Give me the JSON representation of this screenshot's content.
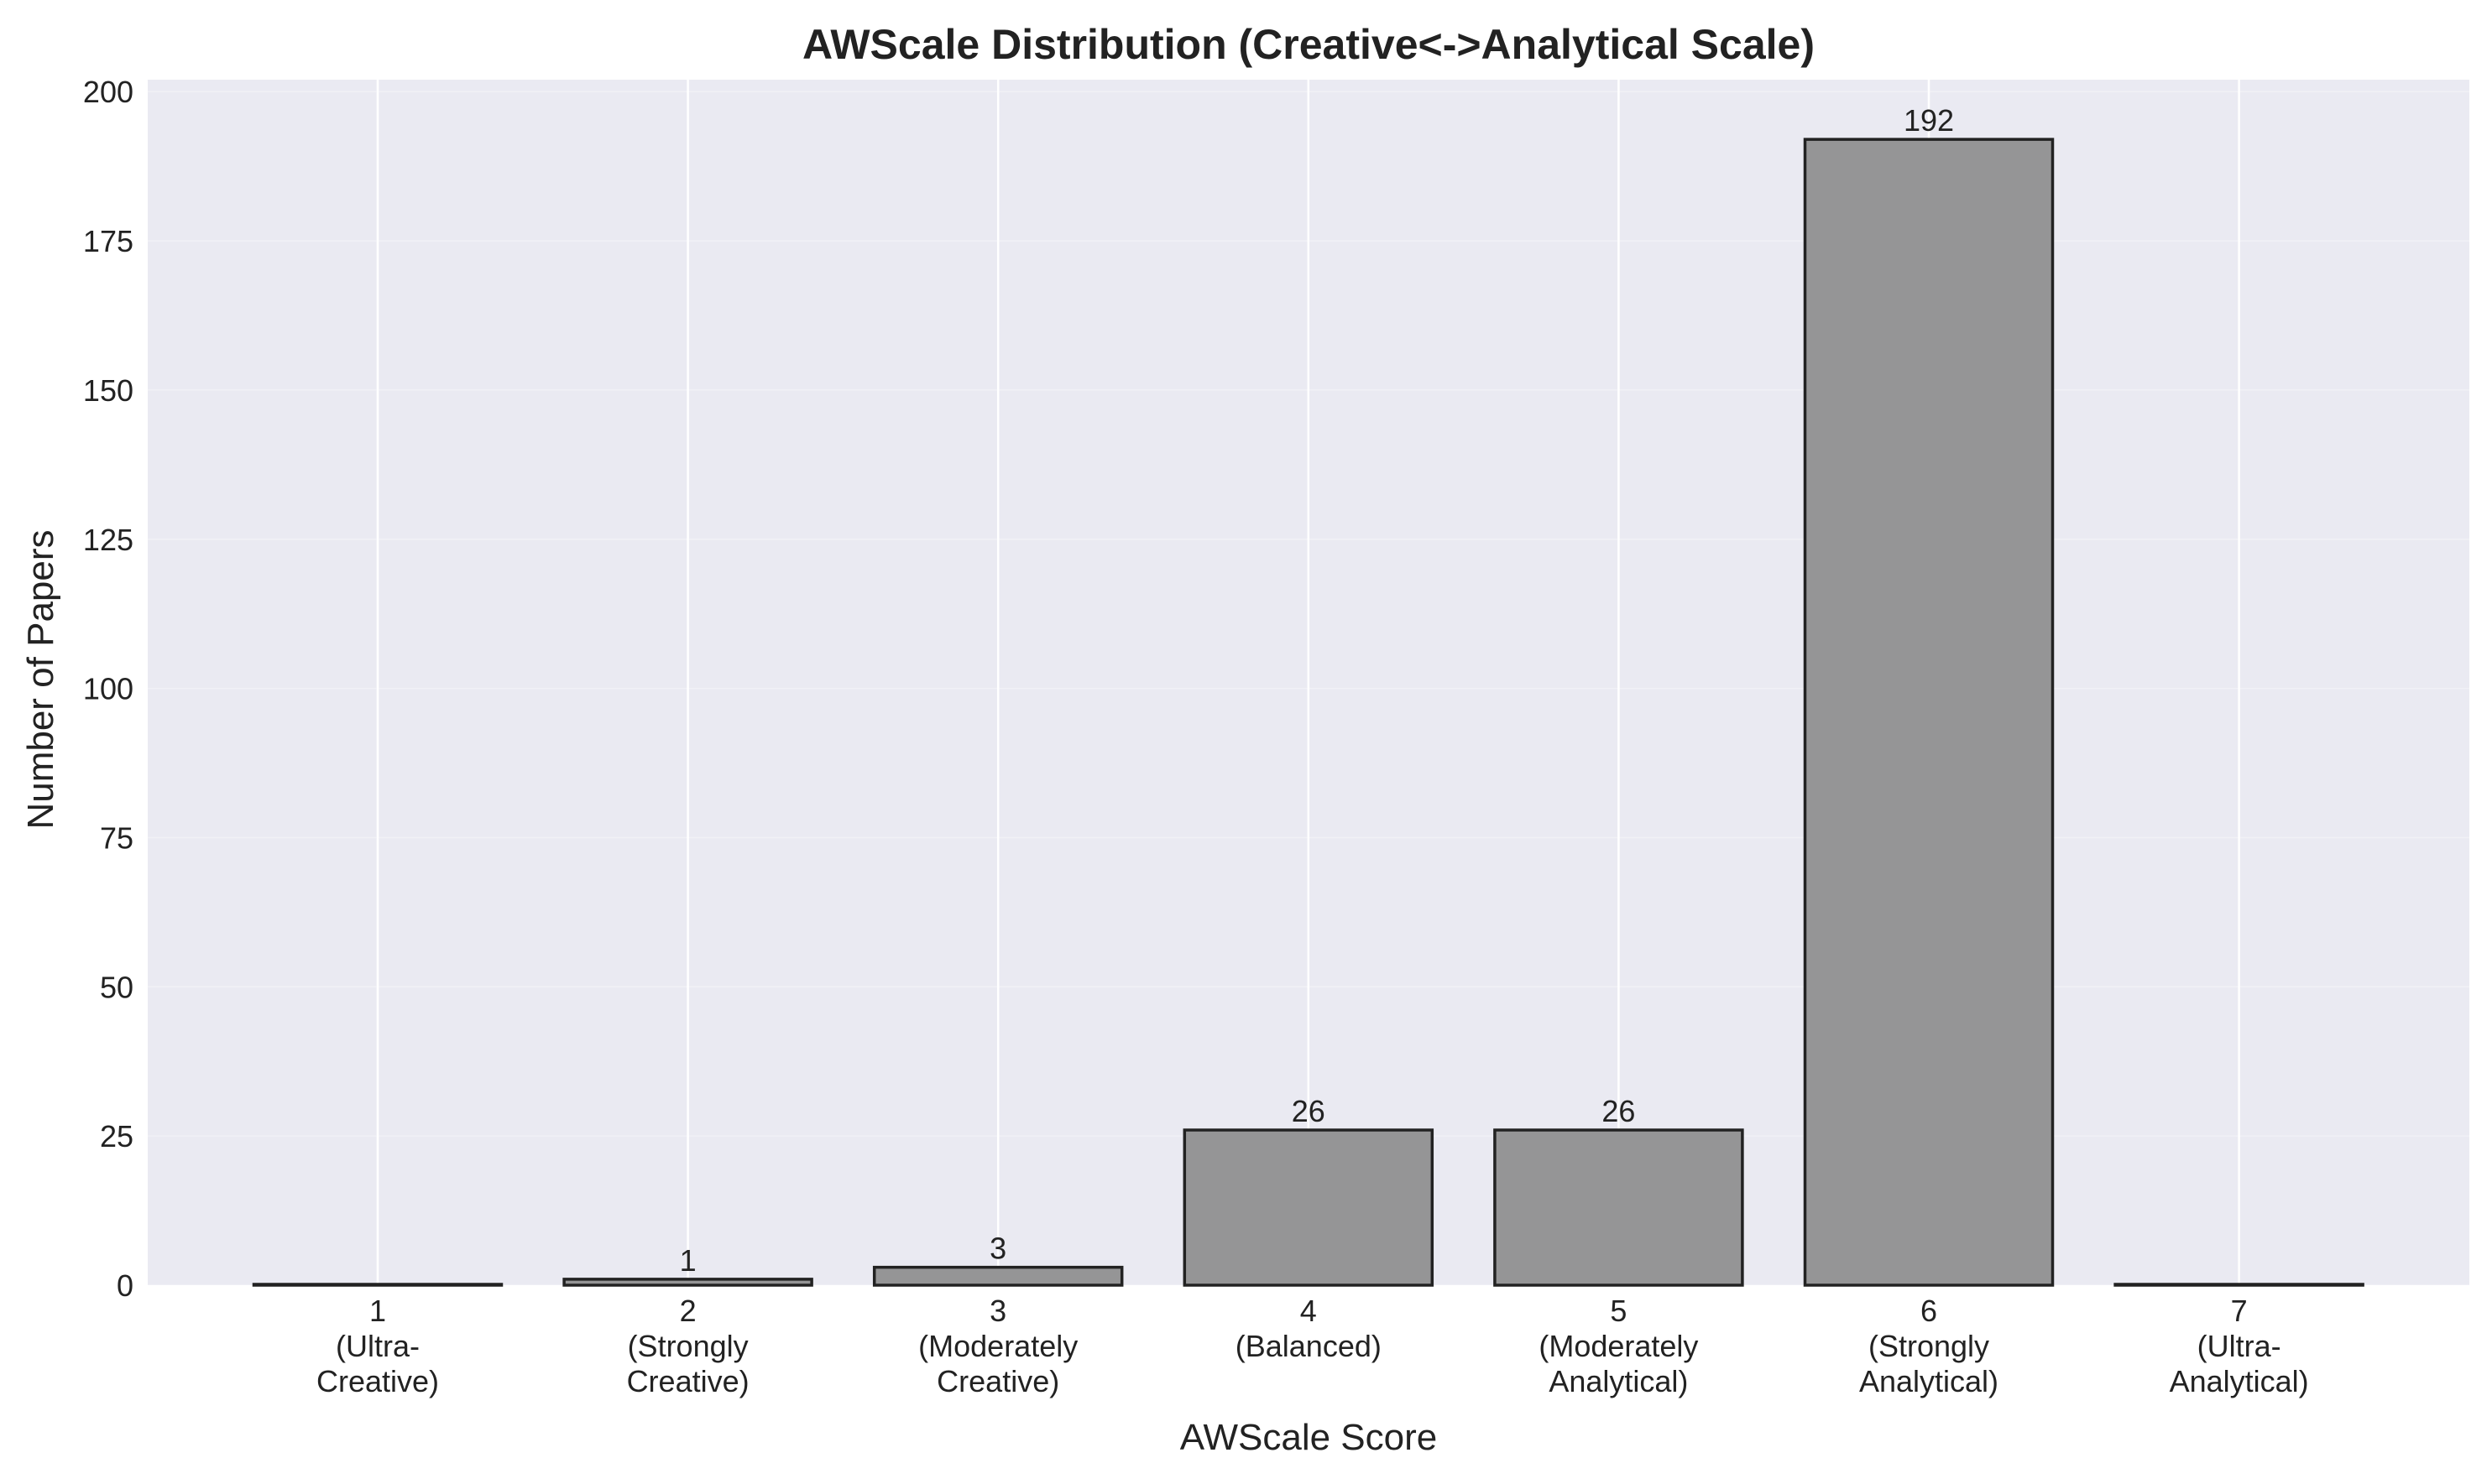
{
  "chart_data": {
    "type": "bar",
    "title": "AWScale Distribution (Creative<->Analytical Scale)",
    "xlabel": "AWScale Score",
    "ylabel": "Number of Papers",
    "categories": [
      [
        "1",
        "(Ultra-",
        "Creative)"
      ],
      [
        "2",
        "(Strongly",
        "Creative)"
      ],
      [
        "3",
        "(Moderately",
        "Creative)"
      ],
      [
        "4",
        "(Balanced)"
      ],
      [
        "5",
        "(Moderately",
        "Analytical)"
      ],
      [
        "6",
        "(Strongly",
        "Analytical)"
      ],
      [
        "7",
        "(Ultra-",
        "Analytical)"
      ]
    ],
    "values": [
      0,
      1,
      3,
      26,
      26,
      192,
      0
    ],
    "value_labels": [
      "",
      "1",
      "3",
      "26",
      "26",
      "192",
      ""
    ],
    "ylim": [
      0,
      202
    ],
    "yticks": [
      0,
      25,
      50,
      75,
      100,
      125,
      150,
      175,
      200
    ],
    "grid": true,
    "colors": {
      "plot_background": "#eaeaf2",
      "grid": "#ffffff",
      "bar_fill": "#959596",
      "bar_edge": "#222222"
    }
  }
}
